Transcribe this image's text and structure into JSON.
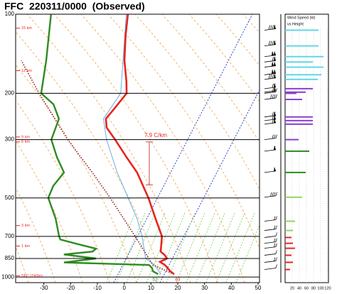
{
  "chart_data": [
    {
      "type": "skewt",
      "title": "FFC  220311/0000  (Observed)",
      "ylim": [
        1050,
        100
      ],
      "yticks": [
        100,
        200,
        300,
        500,
        700,
        850,
        1000
      ],
      "xlim": [
        -40,
        50
      ],
      "xticks": [
        -30,
        -20,
        -10,
        0,
        10,
        20,
        30,
        40,
        50
      ],
      "log_y": true,
      "series": [
        {
          "color": "#6aaee8",
          "pressure": [
            975,
            900,
            850,
            700,
            600,
            500,
            400,
            300,
            250,
            200,
            100
          ],
          "values": [
            12,
            8,
            3.3,
            -2.3,
            -7.6,
            -15,
            -24,
            -34.4,
            -39.6,
            -38.1,
            -51.4
          ]
        },
        {
          "color": "#8b1a1a",
          "pressure": [
            975,
            900,
            700,
            500,
            400,
            300,
            200,
            150
          ],
          "values": [
            17,
            7.3,
            -4.9,
            -21.7,
            -33.3,
            -48.9,
            -68.6,
            -81.6
          ]
        },
        {
          "color": "#2e8b22",
          "pressure": [
            975,
            950,
            925,
            900,
            880,
            850,
            820,
            800,
            780,
            750,
            720,
            700,
            600,
            500,
            450,
            400,
            350,
            300,
            250,
            220,
            200,
            150,
            100
          ],
          "values": [
            11,
            8.5,
            7.6,
            5.9,
            -26.4,
            -15.2,
            -28,
            -17.9,
            -17.1,
            -24.6,
            -32.2,
            -33.3,
            -38,
            -44.8,
            -45.3,
            -43.9,
            -49.5,
            -55,
            -56.2,
            -61.1,
            -67.8,
            -72.3,
            -79.5
          ]
        },
        {
          "color": "#e8251f",
          "pressure": [
            975,
            950,
            900,
            875,
            850,
            825,
            800,
            700,
            600,
            500,
            400,
            350,
            300,
            270,
            250,
            230,
            200,
            180,
            150,
            120,
            100
          ],
          "values": [
            17,
            15,
            11.8,
            9.3,
            11.3,
            9.8,
            7.6,
            5.1,
            -0.7,
            -7.4,
            -16.6,
            -23.5,
            -31.2,
            -36.7,
            -38.7,
            -37.6,
            -35.9,
            -38.3,
            -43.1,
            -47.6,
            -50.8
          ]
        }
      ],
      "height_labels": [
        {
          "pressure": 113,
          "label": "15 km"
        },
        {
          "pressure": 164,
          "label": "12 km"
        },
        {
          "pressure": 293,
          "label": "9 km"
        },
        {
          "pressure": 306,
          "label": "6 km"
        },
        {
          "pressure": 637,
          "label": "3 km"
        },
        {
          "pressure": 762,
          "label": "1 km"
        },
        {
          "pressure": 989,
          "label": "SFC (243m)"
        }
      ],
      "lapse_rate": {
        "label": "7.9 C/km",
        "pressure": [
          306,
          446
        ]
      },
      "surface_labels": [
        {
          "text": "52",
          "color": "#2e8b22"
        },
        {
          "text": "63",
          "color": "#e8251f"
        }
      ]
    },
    {
      "type": "hbar",
      "title": "Wind Speed (kt)",
      "subtitle": "vs Height",
      "xlim": [
        0,
        120
      ],
      "xticks": [
        20,
        40,
        60,
        80,
        100,
        120
      ],
      "y": [
        115,
        132,
        145,
        152,
        159,
        170,
        177,
        192,
        198,
        200,
        211,
        246,
        254,
        262,
        300,
        332,
        400,
        497,
        613,
        665,
        707,
        744,
        777,
        826,
        879,
        936
      ],
      "values": [
        94,
        94,
        108,
        78,
        108,
        102,
        92,
        78,
        58,
        32,
        48,
        78,
        78,
        78,
        38,
        68,
        58,
        48,
        28,
        22,
        18,
        22,
        28,
        18,
        22,
        14
      ],
      "colors": [
        "#5fd8e8",
        "#5fd8e8",
        "#5fd8e8",
        "#5fd8e8",
        "#5fd8e8",
        "#5fd8e8",
        "#5fd8e8",
        "#8a3fd1",
        "#8a3fd1",
        "#8a3fd1",
        "#8a3fd1",
        "#8a3fd1",
        "#8a3fd1",
        "#8a3fd1",
        "#8a3fd1",
        "#2e8b22",
        "#2e8b22",
        "#8fd65a",
        "#8fd65a",
        "#8fd65a",
        "#e8251f",
        "#e8251f",
        "#e8251f",
        "#e8251f",
        "#e8251f",
        "#e8251f"
      ]
    }
  ]
}
